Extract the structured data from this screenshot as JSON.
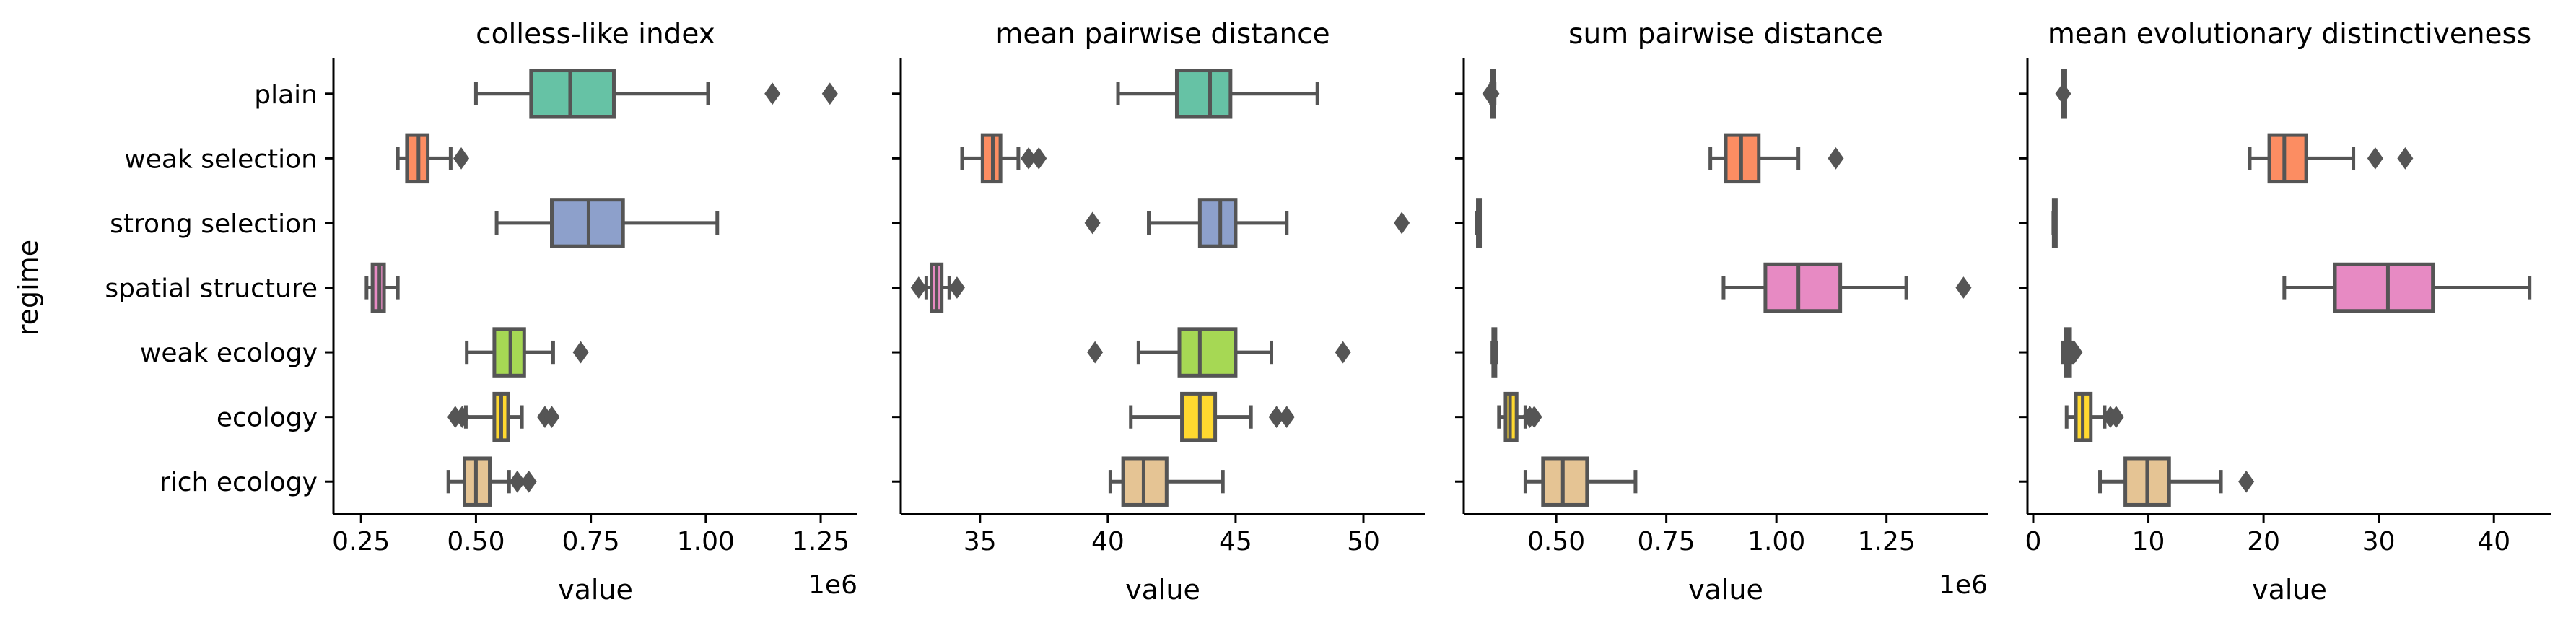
{
  "chart_data": [
    {
      "type": "box",
      "title": "colless-like index",
      "xlabel": "value",
      "ylabel": "regime",
      "x_offset_label": "1e6",
      "xlim": [
        0.19,
        1.33
      ],
      "xticks": [
        0.25,
        0.5,
        0.75,
        1.0,
        1.25
      ],
      "xtick_labels": [
        "0.25",
        "0.50",
        "0.75",
        "1.00",
        "1.25"
      ],
      "categories": [
        "plain",
        "weak selection",
        "strong selection",
        "spatial structure",
        "weak ecology",
        "ecology",
        "rich ecology"
      ],
      "boxes": [
        {
          "whisker_low": 0.5,
          "q1": 0.62,
          "median": 0.705,
          "q3": 0.8,
          "whisker_high": 1.005,
          "outliers": [
            1.145,
            1.27
          ]
        },
        {
          "whisker_low": 0.33,
          "q1": 0.35,
          "median": 0.375,
          "q3": 0.395,
          "whisker_high": 0.445,
          "outliers": [
            0.468
          ]
        },
        {
          "whisker_low": 0.545,
          "q1": 0.665,
          "median": 0.745,
          "q3": 0.82,
          "whisker_high": 1.025,
          "outliers": []
        },
        {
          "whisker_low": 0.262,
          "q1": 0.275,
          "median": 0.29,
          "q3": 0.3,
          "whisker_high": 0.33,
          "outliers": []
        },
        {
          "whisker_low": 0.48,
          "q1": 0.54,
          "median": 0.575,
          "q3": 0.605,
          "whisker_high": 0.668,
          "outliers": [
            0.728
          ]
        },
        {
          "whisker_low": 0.478,
          "q1": 0.54,
          "median": 0.555,
          "q3": 0.57,
          "whisker_high": 0.6,
          "outliers": [
            0.455,
            0.47,
            0.65,
            0.665
          ]
        },
        {
          "whisker_low": 0.44,
          "q1": 0.475,
          "median": 0.5,
          "q3": 0.53,
          "whisker_high": 0.572,
          "outliers": [
            0.59,
            0.615
          ]
        }
      ]
    },
    {
      "type": "box",
      "title": "mean pairwise distance",
      "xlabel": "value",
      "xlim": [
        31.9,
        52.4
      ],
      "xticks": [
        35,
        40,
        45,
        50
      ],
      "xtick_labels": [
        "35",
        "40",
        "45",
        "50"
      ],
      "categories": [
        "plain",
        "weak selection",
        "strong selection",
        "spatial structure",
        "weak ecology",
        "ecology",
        "rich ecology"
      ],
      "boxes": [
        {
          "whisker_low": 40.4,
          "q1": 42.7,
          "median": 44.0,
          "q3": 44.8,
          "whisker_high": 48.2,
          "outliers": []
        },
        {
          "whisker_low": 34.3,
          "q1": 35.1,
          "median": 35.5,
          "q3": 35.8,
          "whisker_high": 36.5,
          "outliers": [
            36.9,
            37.3
          ]
        },
        {
          "whisker_low": 41.6,
          "q1": 43.6,
          "median": 44.4,
          "q3": 45.0,
          "whisker_high": 47.0,
          "outliers": [
            39.4,
            51.5
          ]
        },
        {
          "whisker_low": 32.9,
          "q1": 33.1,
          "median": 33.3,
          "q3": 33.5,
          "whisker_high": 33.8,
          "outliers": [
            32.6,
            34.1
          ]
        },
        {
          "whisker_low": 41.2,
          "q1": 42.8,
          "median": 43.6,
          "q3": 45.0,
          "whisker_high": 46.4,
          "outliers": [
            39.5,
            49.2
          ]
        },
        {
          "whisker_low": 40.9,
          "q1": 42.9,
          "median": 43.6,
          "q3": 44.2,
          "whisker_high": 45.6,
          "outliers": [
            46.6,
            47.0
          ]
        },
        {
          "whisker_low": 40.1,
          "q1": 40.6,
          "median": 41.4,
          "q3": 42.3,
          "whisker_high": 44.5,
          "outliers": []
        }
      ]
    },
    {
      "type": "box",
      "title": "sum pairwise distance",
      "xlabel": "value",
      "x_offset_label": "1e6",
      "xlim": [
        0.29,
        1.48
      ],
      "xticks": [
        0.5,
        0.75,
        1.0,
        1.25
      ],
      "xtick_labels": [
        "0.50",
        "0.75",
        "1.00",
        "1.25"
      ],
      "categories": [
        "plain",
        "weak selection",
        "strong selection",
        "spatial structure",
        "weak ecology",
        "ecology",
        "rich ecology"
      ],
      "boxes": [
        {
          "whisker_low": 0.352,
          "q1": 0.354,
          "median": 0.356,
          "q3": 0.358,
          "whisker_high": 0.36,
          "outliers": [
            0.35,
            0.353
          ]
        },
        {
          "whisker_low": 0.85,
          "q1": 0.885,
          "median": 0.92,
          "q3": 0.96,
          "whisker_high": 1.05,
          "outliers": [
            1.135
          ]
        },
        {
          "whisker_low": 0.32,
          "q1": 0.322,
          "median": 0.323,
          "q3": 0.324,
          "whisker_high": 0.326,
          "outliers": []
        },
        {
          "whisker_low": 0.88,
          "q1": 0.975,
          "median": 1.05,
          "q3": 1.145,
          "whisker_high": 1.295,
          "outliers": [
            1.425
          ]
        },
        {
          "whisker_low": 0.355,
          "q1": 0.357,
          "median": 0.359,
          "q3": 0.361,
          "whisker_high": 0.364,
          "outliers": []
        },
        {
          "whisker_low": 0.37,
          "q1": 0.385,
          "median": 0.395,
          "q3": 0.41,
          "whisker_high": 0.43,
          "outliers": [
            0.44,
            0.45
          ]
        },
        {
          "whisker_low": 0.43,
          "q1": 0.47,
          "median": 0.515,
          "q3": 0.57,
          "whisker_high": 0.68,
          "outliers": []
        }
      ]
    },
    {
      "type": "box",
      "title": "mean evolutionary distinctiveness",
      "xlabel": "value",
      "xlim": [
        -0.5,
        45.0
      ],
      "xticks": [
        0,
        10,
        20,
        30,
        40
      ],
      "xtick_labels": [
        "0",
        "10",
        "20",
        "30",
        "40"
      ],
      "categories": [
        "plain",
        "weak selection",
        "strong selection",
        "spatial structure",
        "weak ecology",
        "ecology",
        "rich ecology"
      ],
      "boxes": [
        {
          "whisker_low": 2.55,
          "q1": 2.6,
          "median": 2.65,
          "q3": 2.7,
          "whisker_high": 2.75,
          "outliers": [
            2.6
          ]
        },
        {
          "whisker_low": 18.8,
          "q1": 20.5,
          "median": 21.8,
          "q3": 23.7,
          "whisker_high": 27.8,
          "outliers": [
            29.7,
            32.3
          ]
        },
        {
          "whisker_low": 1.75,
          "q1": 1.78,
          "median": 1.8,
          "q3": 1.82,
          "whisker_high": 1.85,
          "outliers": []
        },
        {
          "whisker_low": 21.8,
          "q1": 26.2,
          "median": 30.8,
          "q3": 34.7,
          "whisker_high": 43.1,
          "outliers": []
        },
        {
          "whisker_low": 2.6,
          "q1": 2.8,
          "median": 3.0,
          "q3": 3.2,
          "whisker_high": 3.4,
          "outliers": [
            3.3,
            3.6
          ]
        },
        {
          "whisker_low": 2.9,
          "q1": 3.7,
          "median": 4.3,
          "q3": 5.0,
          "whisker_high": 6.2,
          "outliers": [
            6.7,
            7.2
          ]
        },
        {
          "whisker_low": 5.8,
          "q1": 8.0,
          "median": 9.9,
          "q3": 11.8,
          "whisker_high": 16.3,
          "outliers": [
            18.5
          ]
        }
      ]
    }
  ],
  "colors": {
    "palette": [
      "#66c2a5",
      "#fc8d62",
      "#8da0cb",
      "#e78ac3",
      "#a6d854",
      "#ffd92f",
      "#e5c494"
    ],
    "line": "#555555",
    "axis": "#000000"
  }
}
